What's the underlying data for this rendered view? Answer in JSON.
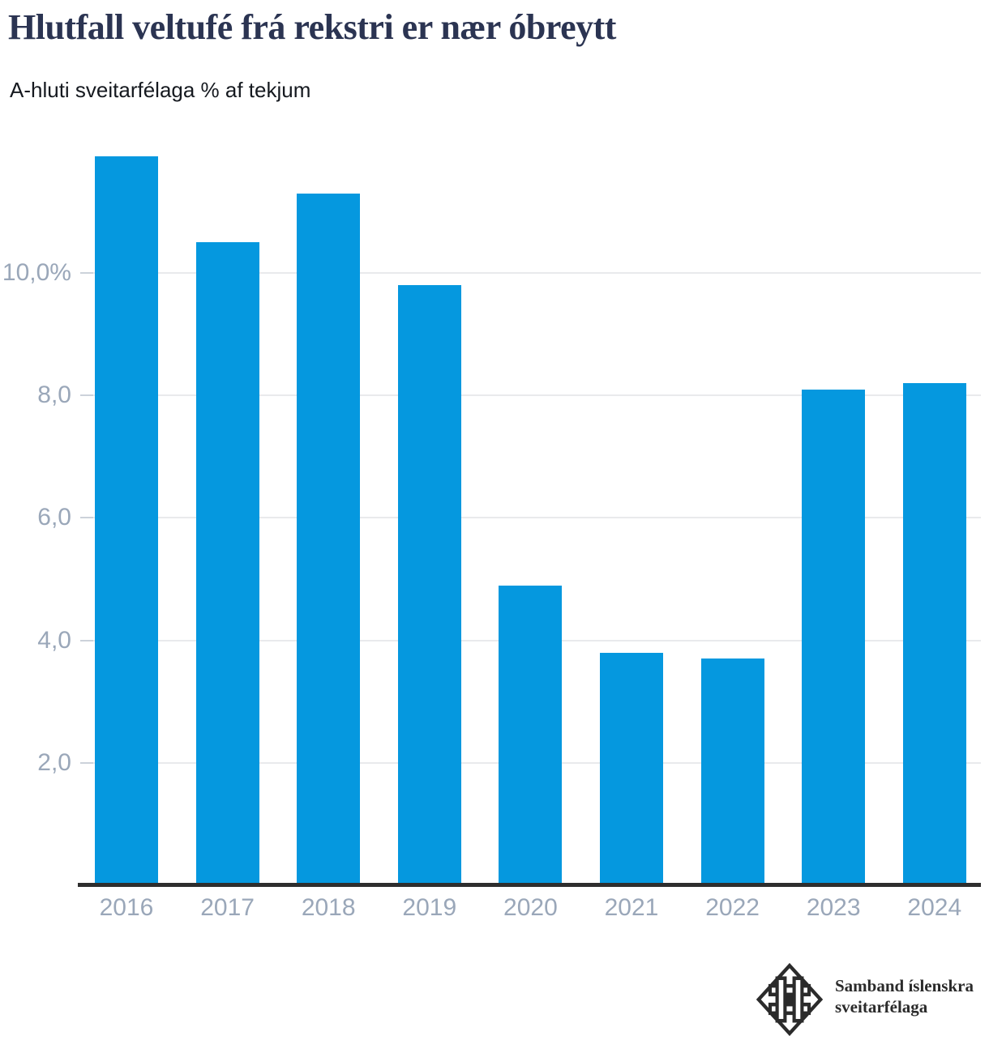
{
  "header": {
    "title": "Hlutfall veltufé frá rekstri er nær óbreytt",
    "subtitle": "A-hluti sveitarfélaga % af tekjum"
  },
  "chart_data": {
    "type": "bar",
    "title": "Hlutfall veltufé frá rekstri er nær óbreytt",
    "subtitle": "A-hluti sveitarfélaga % af tekjum",
    "categories": [
      "2016",
      "2017",
      "2018",
      "2019",
      "2020",
      "2021",
      "2022",
      "2023",
      "2024"
    ],
    "values": [
      11.9,
      10.5,
      11.3,
      9.8,
      4.9,
      3.8,
      3.7,
      8.1,
      8.2
    ],
    "unit": "%",
    "xlabel": "",
    "ylabel": "",
    "ylim": [
      0,
      12.1
    ],
    "yticks": [
      {
        "value": 2,
        "label": "2,0"
      },
      {
        "value": 4,
        "label": "4,0"
      },
      {
        "value": 6,
        "label": "6,0"
      },
      {
        "value": 8,
        "label": "8,0"
      },
      {
        "value": 10,
        "label": "10,0%"
      }
    ],
    "grid": true,
    "legend": false,
    "bar_color": "#0598df"
  },
  "footer": {
    "logo": {
      "icon": "samband-islenskra-sveitarfelaga-emblem",
      "line1": "Samband íslenskra",
      "line2": "sveitarfélaga"
    }
  },
  "colors": {
    "bar": "#0598df",
    "title": "#2b3452",
    "subtitle": "#15191f",
    "axis_label": "#9aa7b9",
    "gridline": "#e9eaec",
    "tick": "#ccd2da",
    "axis_line": "#2e2e2e",
    "logo": "#2b2b2b",
    "background": "#ffffff"
  }
}
